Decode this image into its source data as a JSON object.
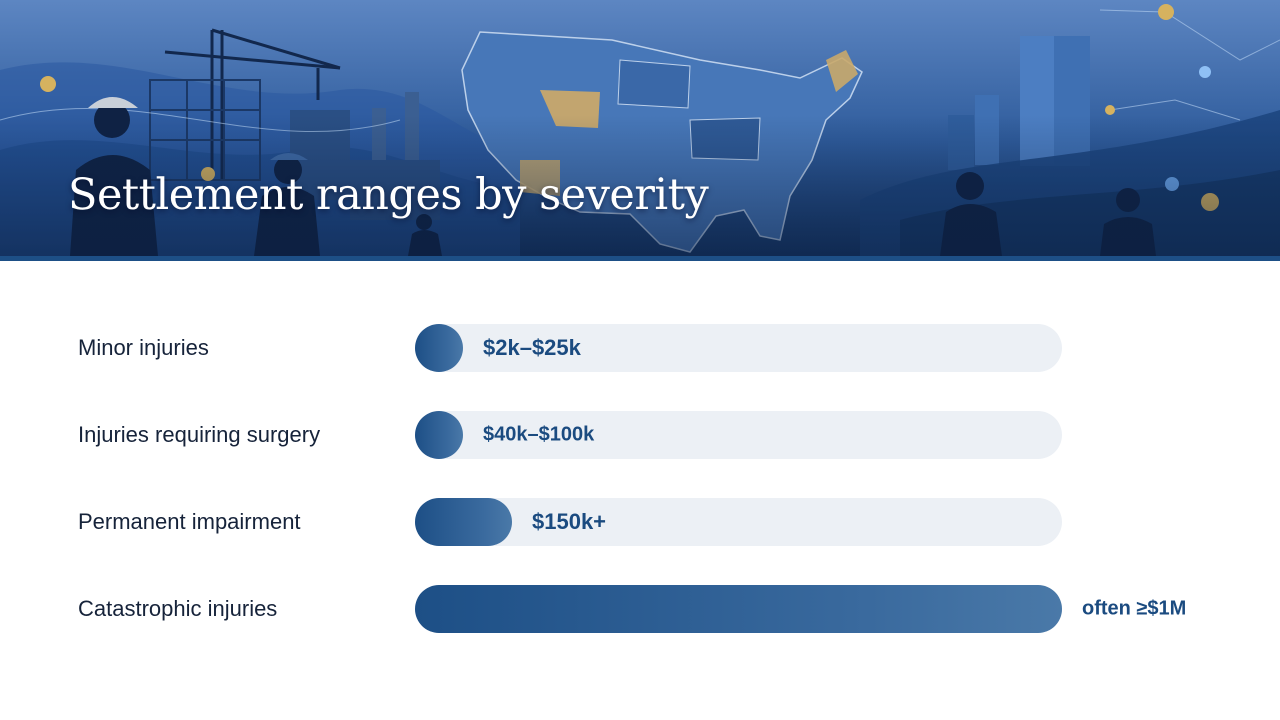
{
  "slide": {
    "title": "Settlement ranges by severity"
  },
  "chart_data": {
    "type": "bar",
    "orientation": "horizontal",
    "categories": [
      "Minor injuries",
      "Injuries requiring surgery",
      "Permanent impairment",
      "Catastrophic injuries"
    ],
    "values": [
      25000,
      100000,
      150000,
      1000000
    ],
    "value_labels": [
      "$2k–$25k",
      "$40k–$100k",
      "$150k+",
      "often ≥$1M"
    ],
    "xlim": [
      0,
      1000000
    ],
    "grid": false,
    "legend": "none",
    "colors": {
      "bar": "#1d4f86",
      "track": "#ecf0f5",
      "label": "#1b4b80",
      "text": "#16233a"
    }
  }
}
